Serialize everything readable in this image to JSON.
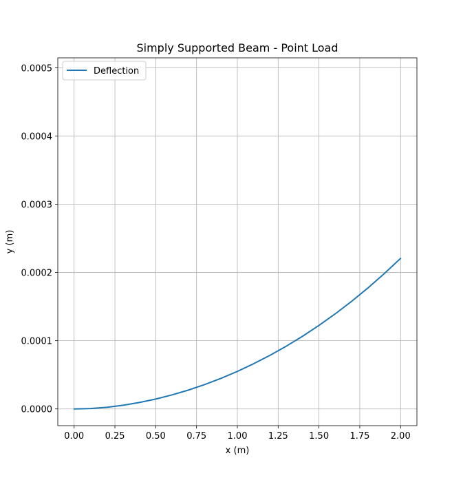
{
  "chart_data": {
    "type": "line",
    "title": "Simply Supported Beam - Point Load",
    "xlabel": "x (m)",
    "ylabel": "y (m)",
    "xlim": [
      -0.1,
      2.1
    ],
    "ylim": [
      -2.45e-05,
      0.0005145
    ],
    "grid": true,
    "legend_position": "top-left",
    "xticks": [
      0.0,
      0.25,
      0.5,
      0.75,
      1.0,
      1.25,
      1.5,
      1.75,
      2.0
    ],
    "xtick_labels": [
      "0.00",
      "0.25",
      "0.50",
      "0.75",
      "1.00",
      "1.25",
      "1.50",
      "1.75",
      "2.00"
    ],
    "yticks": [
      0.0,
      0.0001,
      0.0002,
      0.0003,
      0.0004,
      0.0005
    ],
    "ytick_labels": [
      "0.0000",
      "0.0001",
      "0.0002",
      "0.0003",
      "0.0004",
      "0.0005"
    ],
    "series": [
      {
        "name": "Deflection",
        "color": "#1f77b4",
        "x": [
          0.0,
          0.1,
          0.2,
          0.3,
          0.4,
          0.5,
          0.6,
          0.7,
          0.8,
          0.9,
          1.0,
          1.1,
          1.2,
          1.3,
          1.4,
          1.5,
          1.6,
          1.7,
          1.8,
          1.9,
          2.0
        ],
        "y": [
          0.0,
          6e-07,
          2.4e-06,
          5.4e-06,
          9.4e-06,
          1.45e-05,
          2.06e-05,
          2.76e-05,
          3.57e-05,
          4.48e-05,
          5.5e-05,
          6.63e-05,
          7.86e-05,
          9.2e-05,
          0.0001066,
          0.0001224,
          0.0001394,
          0.0001577,
          0.0001773,
          0.0001983,
          0.0002206
        ]
      }
    ]
  }
}
